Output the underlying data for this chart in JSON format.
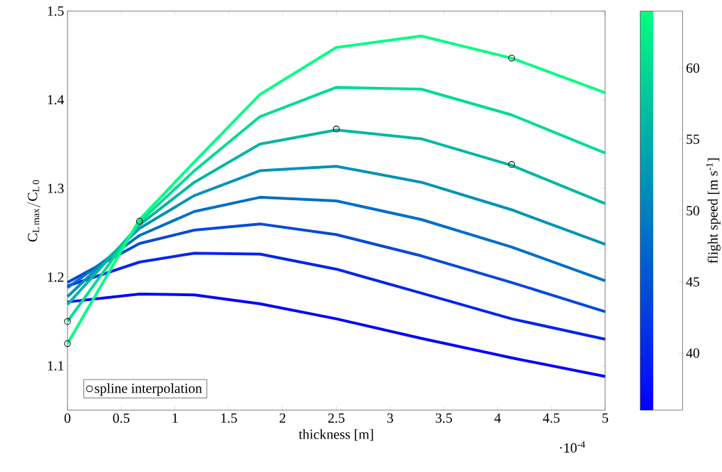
{
  "chart_data": {
    "type": "line",
    "xlabel": "thickness [m]",
    "ylabel": "\\mathrm{C}_{\\mathrm{L\\,max}}/\\mathrm{C}_{\\mathrm{L\\,0}}",
    "clabel": "flight speed [m s$^{-1}$]",
    "xlim": [
      0,
      5
    ],
    "ylim": [
      1.05,
      1.5
    ],
    "xticks": [
      0,
      0.5,
      1,
      1.5,
      2,
      2.5,
      3,
      3.5,
      4,
      4.5,
      5
    ],
    "yticks": [
      1.1,
      1.2,
      1.3,
      1.4,
      1.5
    ],
    "clim": [
      36,
      64
    ],
    "cticks": [
      40,
      45,
      50,
      55,
      60
    ],
    "x": [
      0,
      0.67,
      1.18,
      1.79,
      2.5,
      3.29,
      4.13,
      5
    ],
    "series": [
      {
        "color": "#0000ff",
        "values": [
          1.172,
          1.181,
          1.18,
          1.17,
          1.153,
          1.131,
          1.109,
          1.088
        ]
      },
      {
        "color": "#0024ed",
        "values": [
          1.19,
          1.217,
          1.227,
          1.226,
          1.209,
          1.182,
          1.153,
          1.13
        ]
      },
      {
        "color": "#0049db",
        "values": [
          1.194,
          1.238,
          1.253,
          1.26,
          1.248,
          1.224,
          1.194,
          1.161
        ]
      },
      {
        "color": "#006dc8",
        "values": [
          1.188,
          1.247,
          1.274,
          1.29,
          1.286,
          1.265,
          1.234,
          1.196
        ]
      },
      {
        "color": "#0092b6",
        "values": [
          1.178,
          1.255,
          1.292,
          1.32,
          1.325,
          1.307,
          1.276,
          1.237
        ]
      },
      {
        "color": "#00b6a4",
        "values": [
          1.169,
          1.259,
          1.307,
          1.35,
          1.366,
          1.356,
          1.326,
          1.283
        ]
      },
      {
        "color": "#00db92",
        "values": [
          1.15,
          1.262,
          1.32,
          1.381,
          1.414,
          1.412,
          1.383,
          1.34
        ]
      },
      {
        "color": "#00ff80",
        "values": [
          1.125,
          1.265,
          1.33,
          1.406,
          1.459,
          1.472,
          1.447,
          1.408
        ]
      },
      {
        "type": "scatter",
        "name": "spline interpolation",
        "color": "#000000",
        "marker": "circle",
        "x": [
          0,
          0,
          0.67,
          2.5,
          4.13,
          4.13
        ],
        "values": [
          1.15,
          1.125,
          1.263,
          1.367,
          1.447,
          1.327
        ]
      }
    ],
    "legend": "bottom left",
    "annotations": [
      "·10$^{-4}$"
    ]
  }
}
